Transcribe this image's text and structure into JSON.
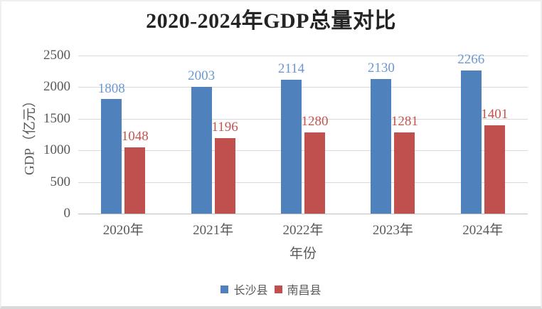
{
  "frame": {
    "background": "#ffffff",
    "border_color": "#efefef",
    "shadow_color": "#d9d9d9"
  },
  "chart_data": {
    "type": "bar",
    "title": "2020-2024年GDP总量对比",
    "xlabel": "年份",
    "ylabel": "GDP（亿元）",
    "categories": [
      "2020年",
      "2021年",
      "2022年",
      "2023年",
      "2024年"
    ],
    "series": [
      {
        "name": "长沙县",
        "color": "#4F81BD",
        "label_color": "#6C98D0",
        "values": [
          1808,
          2003,
          2114,
          2130,
          2266
        ]
      },
      {
        "name": "南昌县",
        "color": "#C0504D",
        "label_color": "#C5554F",
        "values": [
          1048,
          1196,
          1280,
          1281,
          1401
        ]
      }
    ],
    "ylim": [
      0,
      2500
    ],
    "yticks": [
      0,
      500,
      1000,
      1500,
      2000,
      2500
    ],
    "grid": true,
    "grid_color": "#d9d9d9",
    "axis_text_color": "#595959",
    "title_color": "#242424",
    "legend_position": "bottom"
  }
}
